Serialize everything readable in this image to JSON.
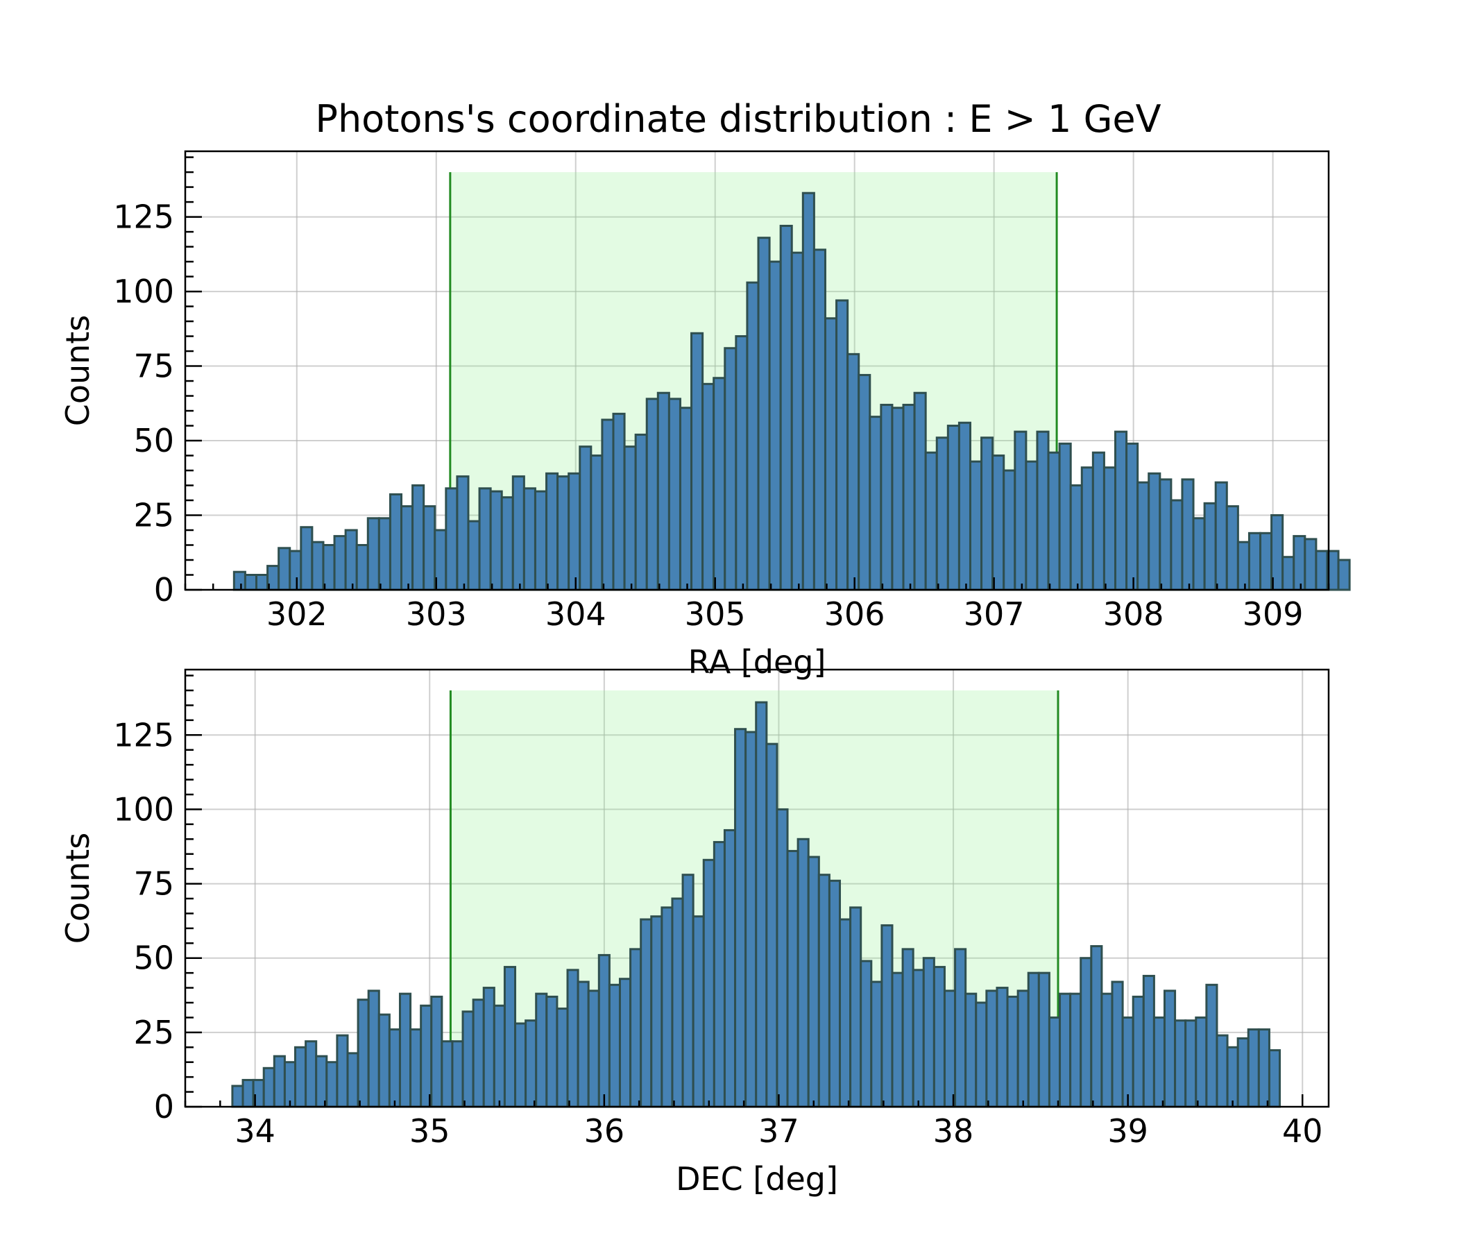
{
  "figure": {
    "title": "Photons's coordinate distribution : E > 1 GeV"
  },
  "chart_data": [
    {
      "type": "bar",
      "name": "ra-histogram",
      "xlabel": "RA [deg]",
      "ylabel": "Counts",
      "xlim": [
        301.2,
        309.4
      ],
      "ylim": [
        0,
        147
      ],
      "xticks": [
        302,
        303,
        304,
        305,
        306,
        307,
        308,
        309
      ],
      "yticks": [
        0,
        25,
        50,
        75,
        100,
        125
      ],
      "grid": true,
      "bin_start": 301.55,
      "bin_width": 0.08,
      "values": [
        6,
        5,
        5,
        8,
        14,
        13,
        21,
        16,
        15,
        18,
        20,
        15,
        24,
        24,
        32,
        28,
        35,
        28,
        20,
        34,
        38,
        23,
        34,
        33,
        31,
        38,
        34,
        33,
        39,
        38,
        39,
        48,
        45,
        57,
        59,
        48,
        52,
        64,
        66,
        64,
        61,
        86,
        69,
        71,
        81,
        85,
        103,
        118,
        110,
        122,
        113,
        133,
        114,
        91,
        97,
        79,
        72,
        58,
        62,
        61,
        62,
        66,
        46,
        51,
        55,
        56,
        43,
        51,
        45,
        40,
        53,
        43,
        53,
        46,
        49,
        35,
        41,
        46,
        41,
        53,
        49,
        36,
        39,
        37,
        30,
        37,
        24,
        29,
        36,
        28,
        16,
        19,
        19,
        25,
        11,
        18,
        17,
        13,
        13,
        10
      ],
      "span": {
        "x0": 303.1,
        "x1": 307.45,
        "y_top": 140
      }
    },
    {
      "type": "bar",
      "name": "dec-histogram",
      "xlabel": "DEC [deg]",
      "ylabel": "Counts",
      "xlim": [
        33.6,
        40.15
      ],
      "ylim": [
        0,
        147
      ],
      "xticks": [
        34,
        35,
        36,
        37,
        38,
        39,
        40
      ],
      "yticks": [
        0,
        25,
        50,
        75,
        100,
        125
      ],
      "grid": true,
      "bin_start": 33.87,
      "bin_width": 0.06,
      "values": [
        7,
        9,
        9,
        13,
        17,
        15,
        20,
        22,
        17,
        15,
        24,
        18,
        36,
        39,
        31,
        26,
        38,
        26,
        34,
        37,
        22,
        22,
        32,
        36,
        40,
        34,
        47,
        28,
        29,
        38,
        37,
        33,
        46,
        42,
        39,
        51,
        41,
        43,
        53,
        63,
        64,
        67,
        70,
        78,
        64,
        83,
        89,
        93,
        127,
        126,
        136,
        122,
        100,
        86,
        90,
        84,
        78,
        76,
        63,
        67,
        49,
        42,
        61,
        45,
        53,
        46,
        50,
        47,
        39,
        53,
        38,
        35,
        39,
        40,
        37,
        39,
        45,
        45,
        30,
        38,
        38,
        50,
        54,
        38,
        42,
        30,
        37,
        44,
        30,
        39,
        29,
        29,
        30,
        41,
        24,
        20,
        23,
        26,
        26,
        19
      ],
      "span": {
        "x0": 35.12,
        "x1": 38.6,
        "y_top": 140
      }
    }
  ]
}
